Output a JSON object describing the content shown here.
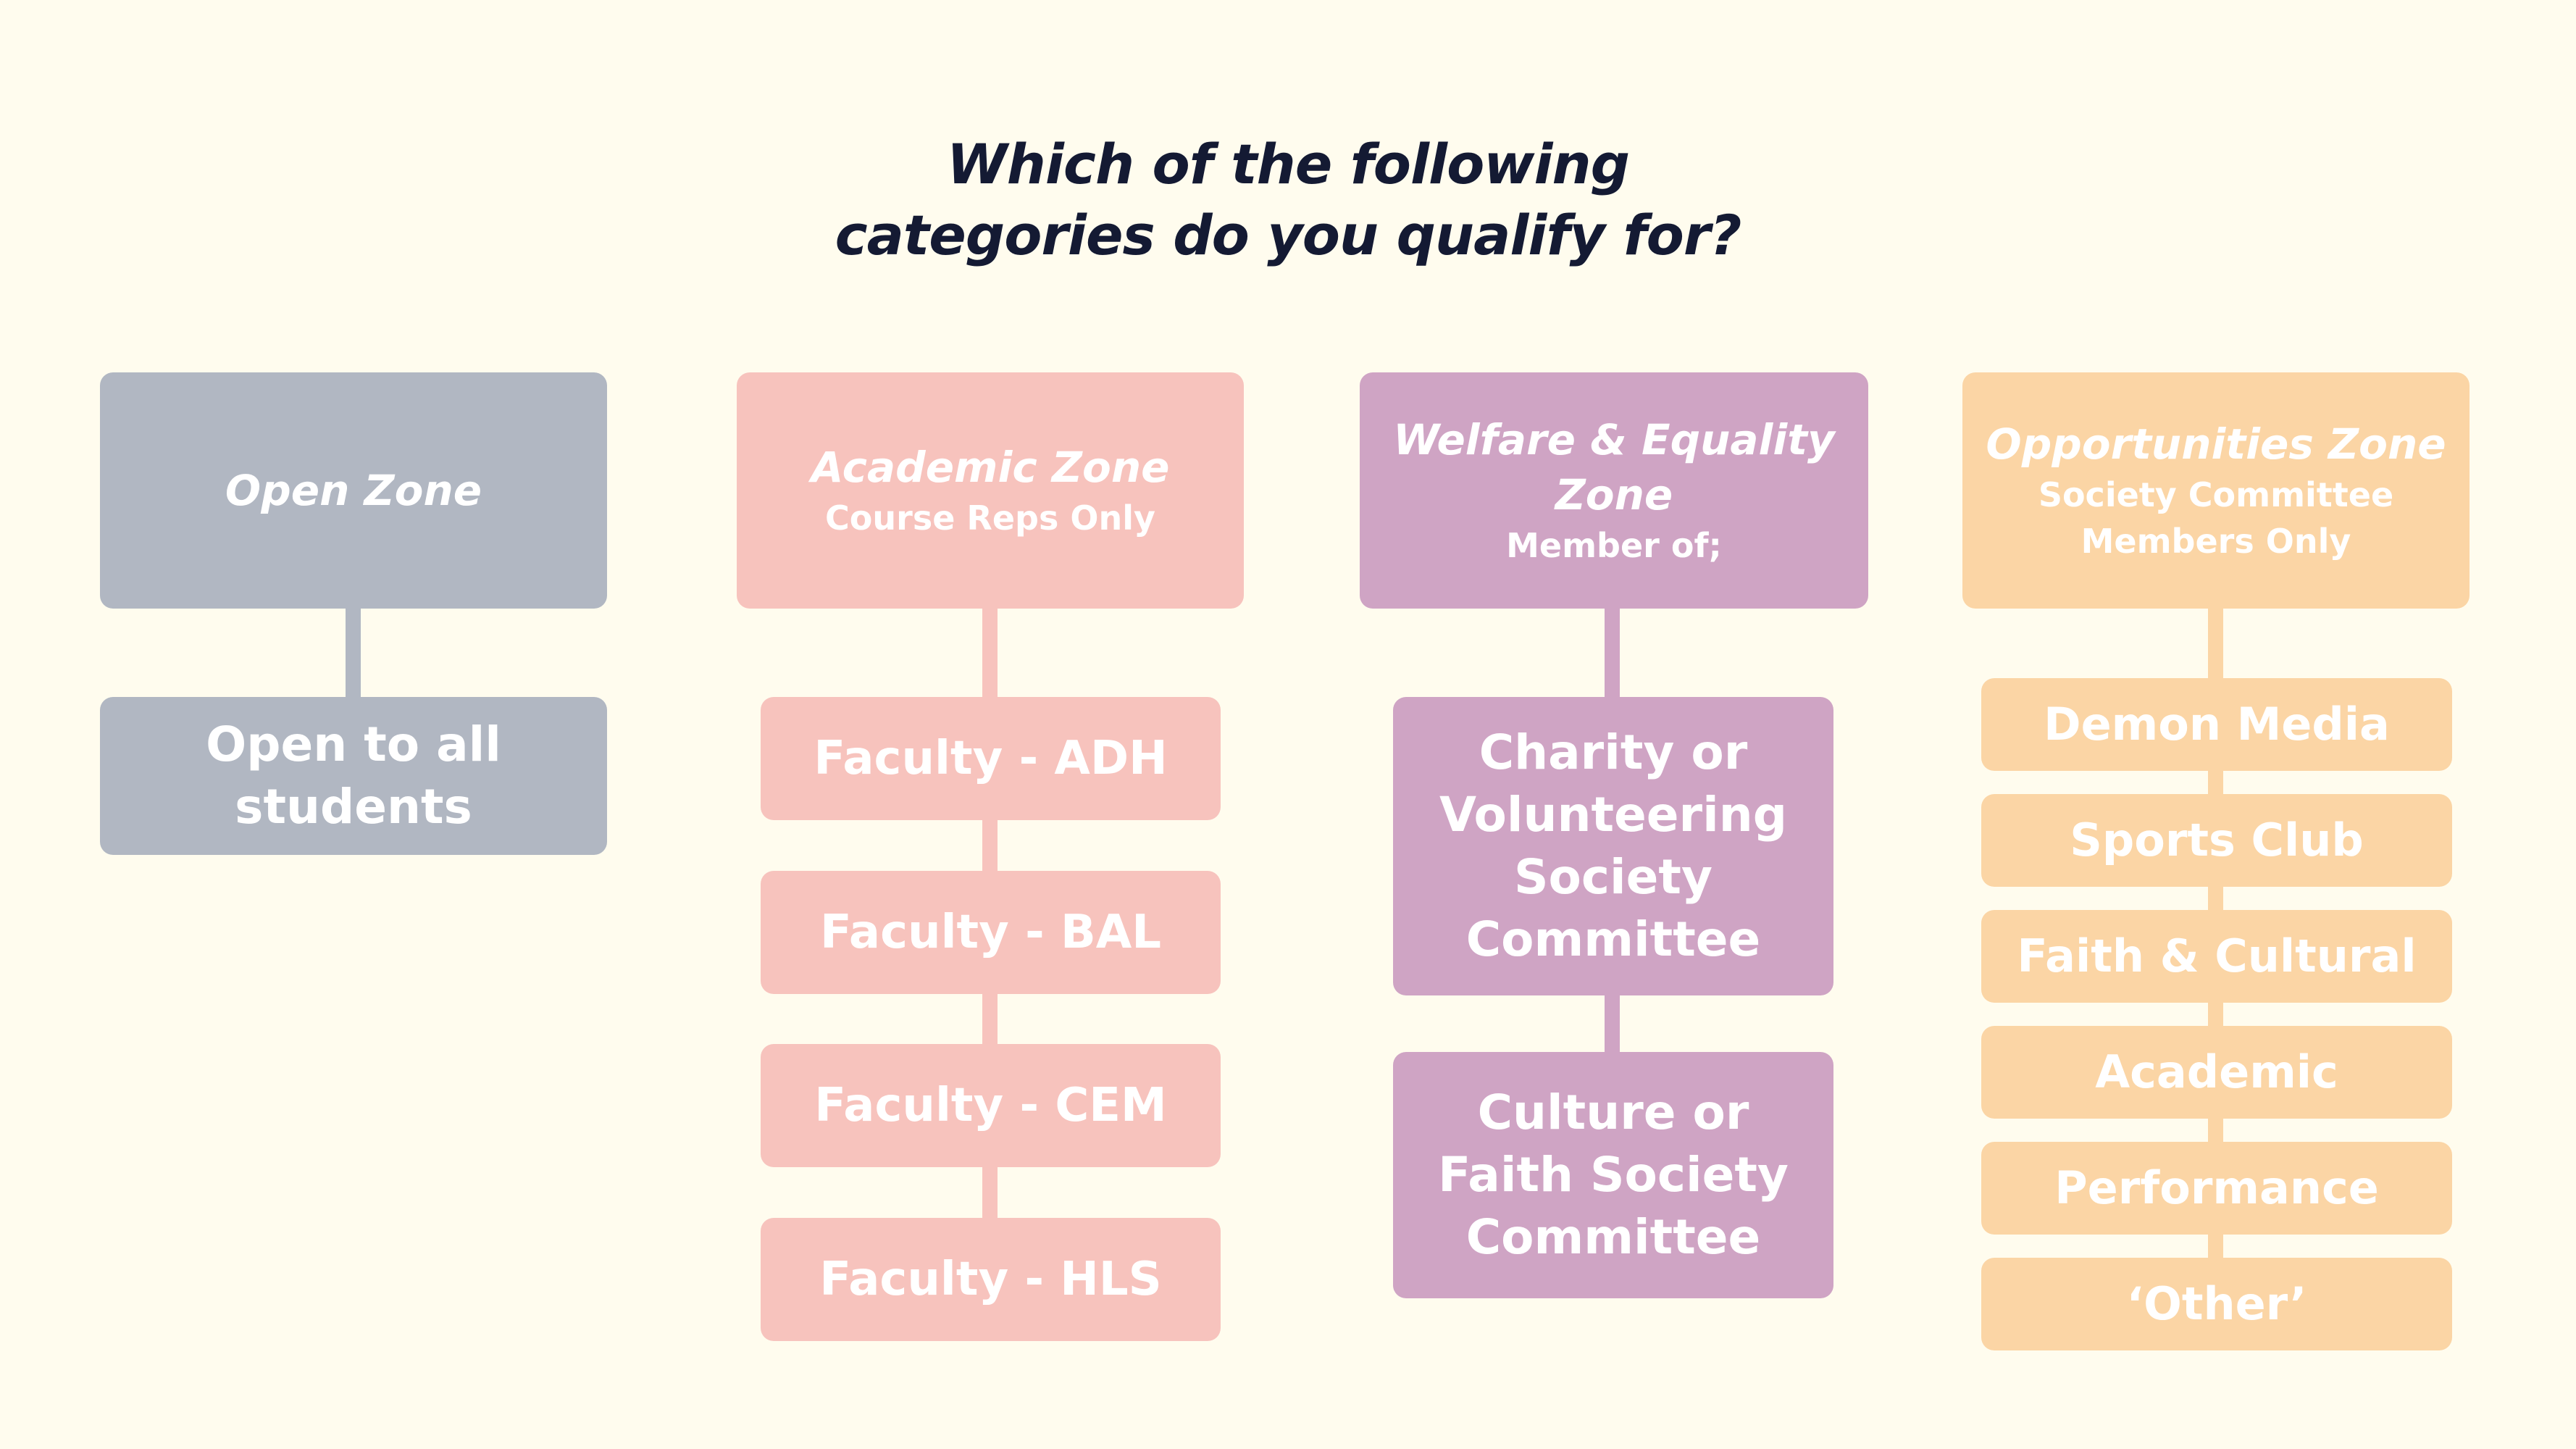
{
  "title": {
    "line1": "Which of the following",
    "line2": "categories do you qualify for?"
  },
  "colors": {
    "background": "#fffcee",
    "title": "#141a33",
    "open": "#b1b7c2",
    "academic": "#f7c3bd",
    "welfare": "#cfa4c4",
    "opportunities": "#fbd5a5",
    "text": "#ffffff"
  },
  "zones": {
    "open": {
      "title": "Open Zone",
      "items": [
        "Open to all",
        "students"
      ]
    },
    "academic": {
      "title": "Academic Zone",
      "subtitle": "Course Reps Only",
      "items": [
        "Faculty - ADH",
        "Faculty - BAL",
        "Faculty - CEM",
        "Faculty - HLS"
      ]
    },
    "welfare": {
      "title_line1": "Welfare & Equality",
      "title_line2": "Zone",
      "subtitle": "Member of;",
      "items": [
        [
          "Charity or",
          "Volunteering",
          "Society",
          "Committee"
        ],
        [
          "Culture or",
          "Faith Society",
          "Committee"
        ]
      ]
    },
    "opportunities": {
      "title": "Opportunities Zone",
      "subtitle_line1": "Society Committee",
      "subtitle_line2": "Members Only",
      "items": [
        "Demon Media",
        "Sports Club",
        "Faith & Cultural",
        "Academic",
        "Performance",
        "‘Other’"
      ]
    }
  }
}
